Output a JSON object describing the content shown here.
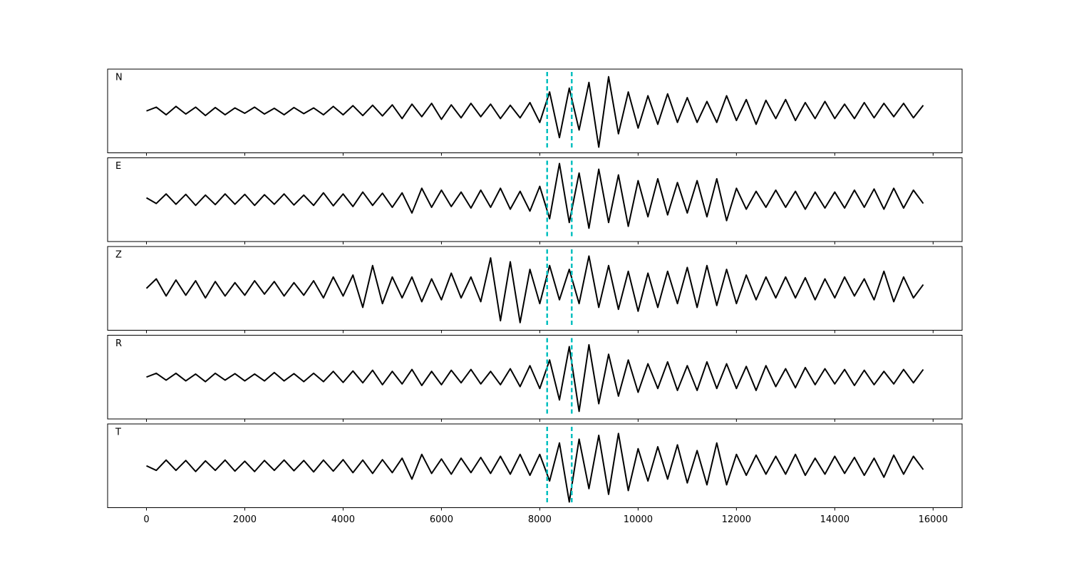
{
  "chart_data": {
    "type": "line",
    "layout": "stacked",
    "x": [
      0,
      200,
      400,
      600,
      800,
      1000,
      1200,
      1400,
      1600,
      1800,
      2000,
      2200,
      2400,
      2600,
      2800,
      3000,
      3200,
      3400,
      3600,
      3800,
      4000,
      4200,
      4400,
      4600,
      4800,
      5000,
      5200,
      5400,
      5600,
      5800,
      6000,
      6200,
      6400,
      6600,
      6800,
      7000,
      7200,
      7400,
      7600,
      7800,
      8000,
      8200,
      8400,
      8600,
      8800,
      9000,
      9200,
      9400,
      9600,
      9800,
      10000,
      10200,
      10400,
      10600,
      10800,
      11000,
      11200,
      11400,
      11600,
      11800,
      12000,
      12200,
      12400,
      12600,
      12800,
      13000,
      13200,
      13400,
      13600,
      13800,
      14000,
      14200,
      14400,
      14600,
      14800,
      15000,
      15200,
      15400,
      15600,
      15800
    ],
    "xlim": [
      -790,
      16590
    ],
    "xticks": [
      0,
      2000,
      4000,
      6000,
      8000,
      10000,
      12000,
      14000,
      16000
    ],
    "ylim": [
      -1.1,
      1.1
    ],
    "vlines": [
      8150,
      8650
    ],
    "vline_color": "#00bfbf",
    "series": [
      {
        "name": "N",
        "color": "#000000",
        "values": [
          0.0,
          0.1,
          -0.1,
          0.12,
          -0.08,
          0.1,
          -0.12,
          0.09,
          -0.1,
          0.08,
          -0.06,
          0.1,
          -0.08,
          0.07,
          -0.1,
          0.09,
          -0.07,
          0.08,
          -0.1,
          0.12,
          -0.1,
          0.14,
          -0.12,
          0.15,
          -0.13,
          0.16,
          -0.2,
          0.18,
          -0.15,
          0.2,
          -0.22,
          0.16,
          -0.18,
          0.2,
          -0.15,
          0.18,
          -0.2,
          0.15,
          -0.18,
          0.22,
          -0.3,
          0.5,
          -0.7,
          0.6,
          -0.5,
          0.75,
          -0.95,
          0.9,
          -0.6,
          0.5,
          -0.45,
          0.4,
          -0.35,
          0.45,
          -0.3,
          0.35,
          -0.3,
          0.25,
          -0.3,
          0.4,
          -0.25,
          0.3,
          -0.35,
          0.28,
          -0.2,
          0.3,
          -0.25,
          0.22,
          -0.2,
          0.25,
          -0.2,
          0.18,
          -0.2,
          0.22,
          -0.18,
          0.2,
          -0.15,
          0.2,
          -0.18,
          0.15
        ]
      },
      {
        "name": "E",
        "color": "#000000",
        "values": [
          0.05,
          -0.1,
          0.15,
          -0.12,
          0.14,
          -0.15,
          0.12,
          -0.13,
          0.15,
          -0.12,
          0.14,
          -0.15,
          0.13,
          -0.12,
          0.15,
          -0.14,
          0.12,
          -0.15,
          0.18,
          -0.16,
          0.15,
          -0.18,
          0.2,
          -0.15,
          0.17,
          -0.2,
          0.18,
          -0.35,
          0.3,
          -0.2,
          0.25,
          -0.18,
          0.2,
          -0.22,
          0.25,
          -0.2,
          0.3,
          -0.25,
          0.22,
          -0.3,
          0.35,
          -0.5,
          0.95,
          -0.6,
          0.7,
          -0.75,
          0.8,
          -0.6,
          0.65,
          -0.7,
          0.5,
          -0.45,
          0.55,
          -0.4,
          0.45,
          -0.35,
          0.5,
          -0.45,
          0.55,
          -0.55,
          0.3,
          -0.25,
          0.22,
          -0.2,
          0.25,
          -0.2,
          0.22,
          -0.25,
          0.2,
          -0.22,
          0.2,
          -0.22,
          0.25,
          -0.2,
          0.28,
          -0.25,
          0.3,
          -0.22,
          0.25,
          -0.1
        ]
      },
      {
        "name": "Z",
        "color": "#000000",
        "values": [
          0.0,
          0.25,
          -0.2,
          0.22,
          -0.18,
          0.2,
          -0.25,
          0.18,
          -0.2,
          0.15,
          -0.18,
          0.2,
          -0.15,
          0.18,
          -0.2,
          0.15,
          -0.18,
          0.2,
          -0.25,
          0.3,
          -0.2,
          0.35,
          -0.5,
          0.6,
          -0.4,
          0.3,
          -0.25,
          0.3,
          -0.35,
          0.25,
          -0.3,
          0.4,
          -0.25,
          0.3,
          -0.35,
          0.8,
          -0.85,
          0.7,
          -0.9,
          0.5,
          -0.4,
          0.6,
          -0.3,
          0.5,
          -0.4,
          0.85,
          -0.5,
          0.6,
          -0.55,
          0.45,
          -0.6,
          0.4,
          -0.5,
          0.45,
          -0.4,
          0.55,
          -0.5,
          0.6,
          -0.45,
          0.5,
          -0.4,
          0.35,
          -0.3,
          0.3,
          -0.25,
          0.3,
          -0.25,
          0.28,
          -0.3,
          0.25,
          -0.25,
          0.3,
          -0.2,
          0.25,
          -0.3,
          0.45,
          -0.35,
          0.3,
          -0.25,
          0.1
        ]
      },
      {
        "name": "R",
        "color": "#000000",
        "values": [
          0.0,
          0.1,
          -0.08,
          0.1,
          -0.1,
          0.08,
          -0.12,
          0.1,
          -0.08,
          0.09,
          -0.1,
          0.08,
          -0.1,
          0.12,
          -0.1,
          0.09,
          -0.12,
          0.1,
          -0.12,
          0.15,
          -0.14,
          0.16,
          -0.15,
          0.18,
          -0.2,
          0.15,
          -0.18,
          0.2,
          -0.22,
          0.15,
          -0.2,
          0.18,
          -0.15,
          0.2,
          -0.18,
          0.15,
          -0.2,
          0.22,
          -0.25,
          0.3,
          -0.3,
          0.45,
          -0.6,
          0.8,
          -0.9,
          0.85,
          -0.7,
          0.6,
          -0.5,
          0.45,
          -0.4,
          0.35,
          -0.3,
          0.4,
          -0.35,
          0.3,
          -0.35,
          0.4,
          -0.3,
          0.35,
          -0.3,
          0.28,
          -0.35,
          0.3,
          -0.25,
          0.22,
          -0.28,
          0.25,
          -0.2,
          0.22,
          -0.18,
          0.2,
          -0.22,
          0.18,
          -0.2,
          0.15,
          -0.18,
          0.2,
          -0.15,
          0.2
        ]
      },
      {
        "name": "T",
        "color": "#000000",
        "values": [
          0.0,
          -0.12,
          0.15,
          -0.12,
          0.14,
          -0.15,
          0.13,
          -0.12,
          0.15,
          -0.14,
          0.12,
          -0.15,
          0.14,
          -0.12,
          0.15,
          -0.13,
          0.14,
          -0.16,
          0.15,
          -0.14,
          0.16,
          -0.18,
          0.15,
          -0.2,
          0.16,
          -0.18,
          0.2,
          -0.35,
          0.3,
          -0.2,
          0.18,
          -0.22,
          0.2,
          -0.18,
          0.22,
          -0.2,
          0.25,
          -0.22,
          0.3,
          -0.25,
          0.3,
          -0.4,
          0.6,
          -0.95,
          0.7,
          -0.6,
          0.8,
          -0.75,
          0.85,
          -0.65,
          0.45,
          -0.4,
          0.5,
          -0.35,
          0.55,
          -0.45,
          0.4,
          -0.5,
          0.6,
          -0.5,
          0.3,
          -0.25,
          0.28,
          -0.22,
          0.25,
          -0.22,
          0.3,
          -0.25,
          0.2,
          -0.22,
          0.25,
          -0.2,
          0.22,
          -0.25,
          0.2,
          -0.3,
          0.28,
          -0.22,
          0.25,
          -0.1
        ]
      }
    ]
  }
}
